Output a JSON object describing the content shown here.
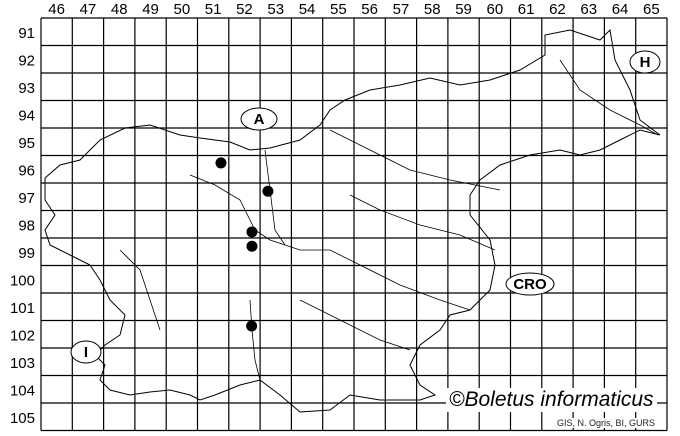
{
  "map": {
    "columns": [
      "46",
      "47",
      "48",
      "49",
      "50",
      "51",
      "52",
      "53",
      "54",
      "55",
      "56",
      "57",
      "58",
      "59",
      "60",
      "61",
      "62",
      "63",
      "64",
      "65"
    ],
    "rows": [
      "91",
      "92",
      "93",
      "94",
      "95",
      "96",
      "97",
      "98",
      "99",
      "100",
      "101",
      "102",
      "103",
      "104",
      "105"
    ],
    "country_labels": {
      "austria": "A",
      "hungary": "H",
      "croatia": "CRO",
      "italy": "I"
    },
    "records": [
      {
        "col": "51",
        "row": "96"
      },
      {
        "col": "53",
        "row": "97"
      },
      {
        "col": "52",
        "row": "98"
      },
      {
        "col": "52",
        "row": "99"
      },
      {
        "col": "52",
        "row": "102"
      }
    ],
    "record_color": "#000000"
  },
  "footer": {
    "copyright": "©Boletus informaticus",
    "credit": "GIS, N. Ogris, BI, GURS"
  }
}
